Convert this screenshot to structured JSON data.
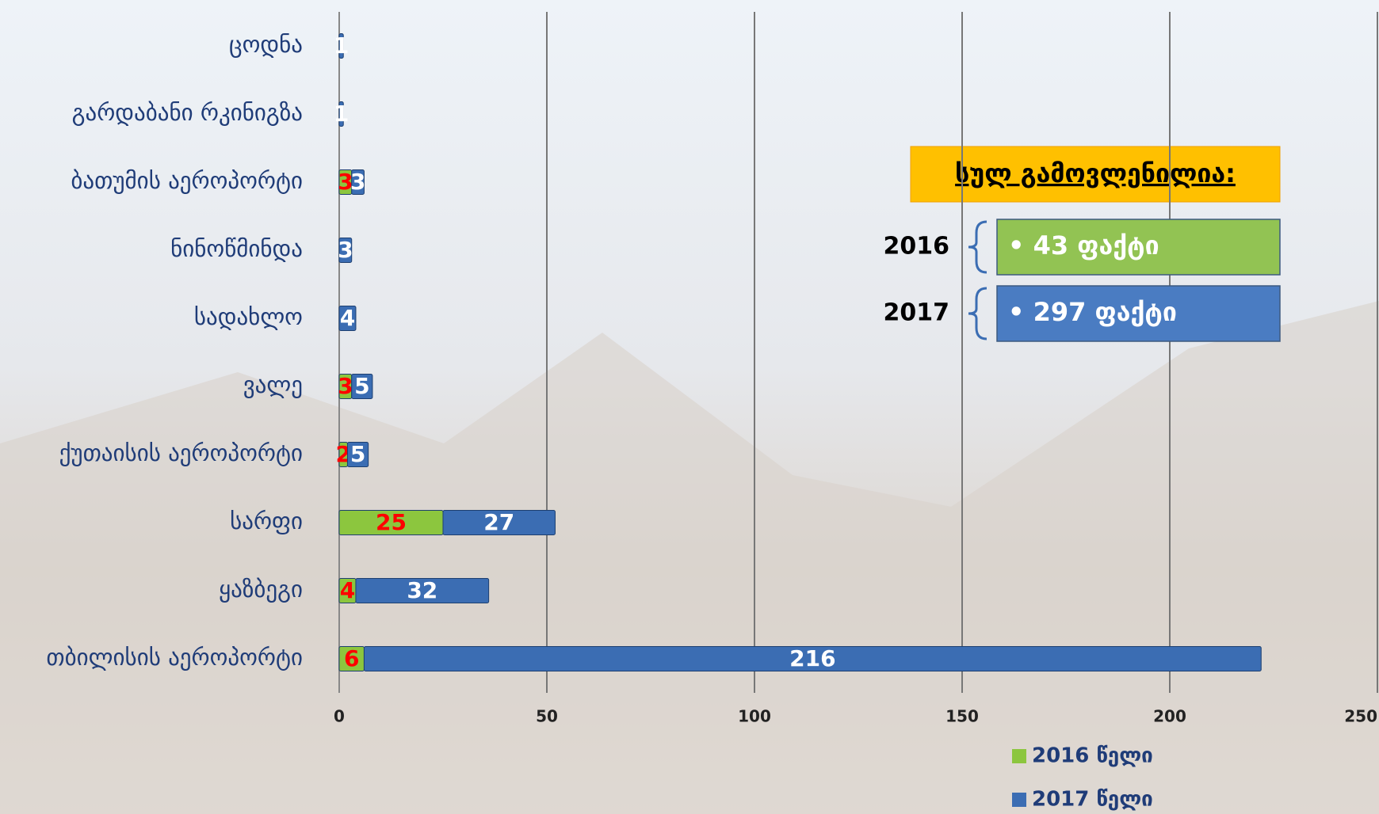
{
  "chart_data": {
    "type": "bar",
    "orientation": "horizontal",
    "stacked": true,
    "categories": [
      "ცოდნა",
      "გარდაბანი რკინიგზა",
      "ბათუმის აეროპორტი",
      "ნინოწმინდა",
      "სადახლო",
      "ვალე",
      "ქუთაისის აეროპორტი",
      "სარფი",
      "ყაზბეგი",
      "თბილისის აეროპორტი"
    ],
    "series": [
      {
        "name": "2016 წელი",
        "color": "#8cc63e",
        "label_color": "#ff0000",
        "values": [
          null,
          null,
          3,
          null,
          null,
          3,
          2,
          25,
          4,
          6
        ]
      },
      {
        "name": "2017 წელი",
        "color": "#3b6db3",
        "label_color": "#ffffff",
        "values": [
          1,
          1,
          3,
          3,
          4,
          5,
          5,
          27,
          32,
          216
        ]
      }
    ],
    "xlim": [
      0,
      250
    ],
    "xticks": [
      0,
      50,
      100,
      150,
      200,
      250
    ],
    "grid": true,
    "legend": "bottom-right",
    "annotations": {
      "title": "სულ გამოვლენილია:",
      "items": [
        {
          "year": "2016",
          "text": "• 43 ფაქტი",
          "color": "#92c353"
        },
        {
          "year": "2017",
          "text": "• 297  ფაქტი",
          "color": "#4a7cc2"
        }
      ]
    }
  }
}
